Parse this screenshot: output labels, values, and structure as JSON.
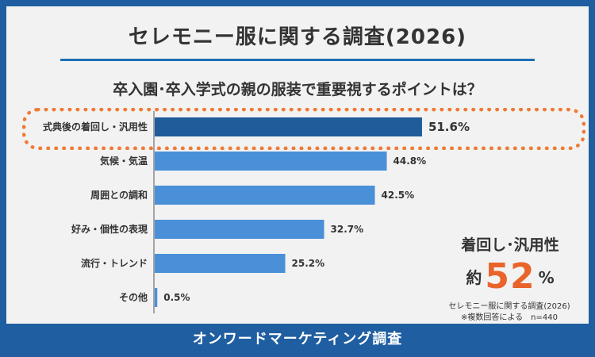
{
  "header": {
    "title": "セレモニー服に関する調査(2026)"
  },
  "chart_data": {
    "type": "bar",
    "orientation": "horizontal",
    "title": "卒入園･卒入学式の親の服装で重要視するポイントは？",
    "categories": [
      "式典後の着回し・汎用性",
      "気候・気温",
      "周囲との調和",
      "好み・個性の表現",
      "流行・トレンド",
      "その他"
    ],
    "values": [
      51.6,
      44.8,
      42.5,
      32.7,
      25.2,
      0.5
    ],
    "value_labels": [
      "51.6%",
      "44.8%",
      "42.5%",
      "32.7%",
      "25.2%",
      "0.5%"
    ],
    "unit": "%",
    "xlim": [
      0,
      100
    ],
    "highlighted_category": "式典後の着回し・汎用性",
    "colors": {
      "highlight": "#1f5c99",
      "normal": "#4a90d9"
    }
  },
  "callout": {
    "heading": "着回し･汎用性",
    "prefix": "約",
    "number": "52",
    "unit": "%",
    "source": "セレモニー服に関する調査(2026)",
    "note": "※複数回答による　n=440"
  },
  "footer": {
    "text": "オンワードマーケティング調査"
  },
  "colors": {
    "frame": "#1f5ea0",
    "accent": "#e8642a",
    "panel": "#f2f2f2"
  }
}
